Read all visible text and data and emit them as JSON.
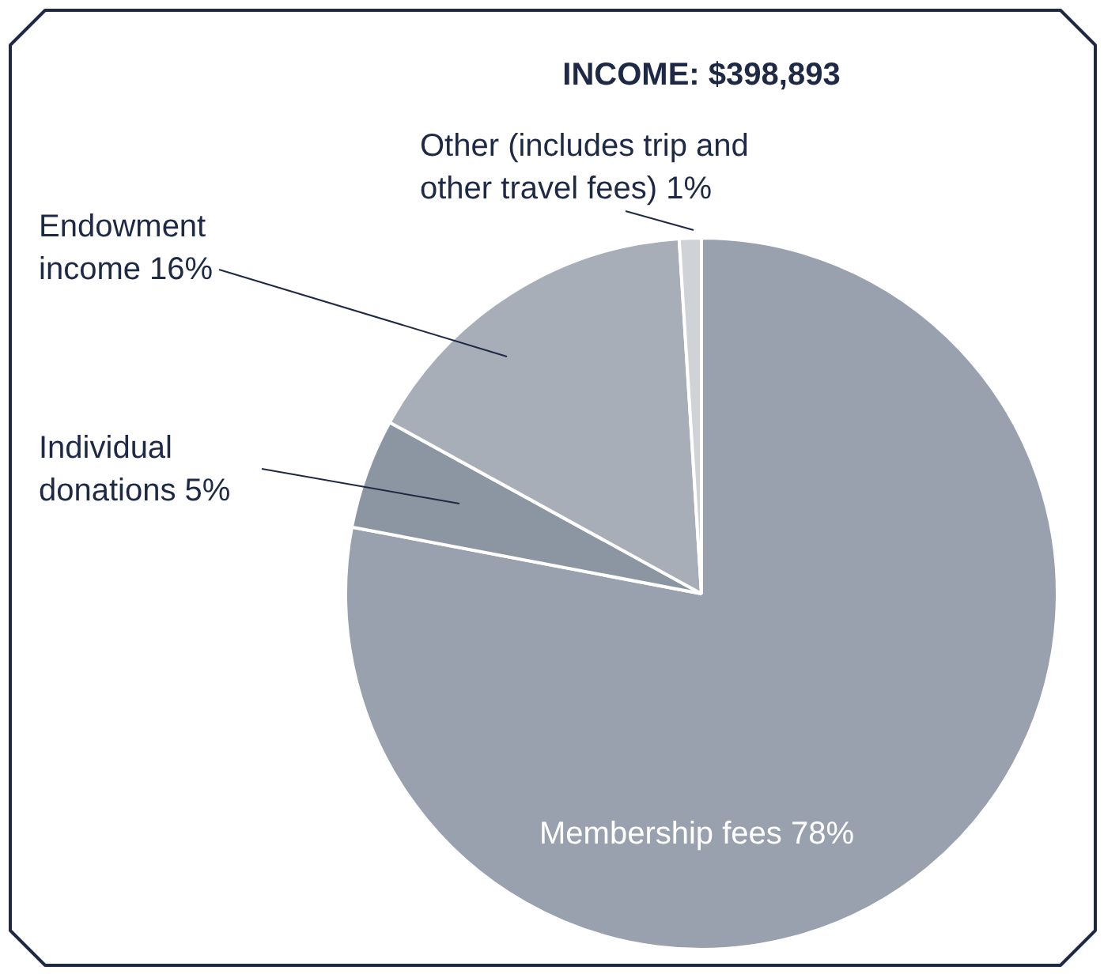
{
  "chart_data": {
    "type": "pie",
    "title": "INCOME: $398,893",
    "categories": [
      "Membership fees",
      "Individual\ndonations",
      "Endowment\nincome",
      "Other (includes trip and\nother travel fees)"
    ],
    "values": [
      78,
      5,
      16,
      1
    ],
    "value_labels": [
      "78%",
      "5%",
      "16%",
      "1%"
    ],
    "colors": [
      "#98a1ad",
      "#8c96a2",
      "#a8aeb8",
      "#cfd2d7"
    ]
  }
}
